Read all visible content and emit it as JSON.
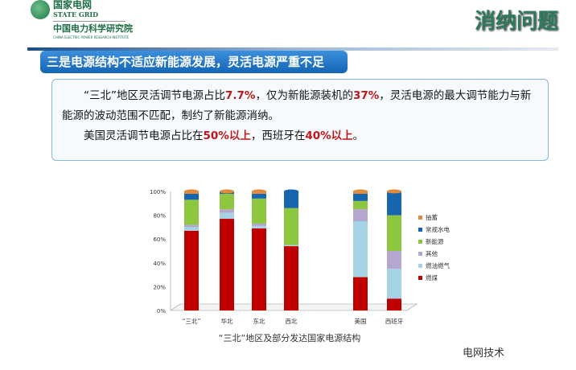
{
  "header": {
    "brand_cn": "国家电网",
    "brand_en": "STATE GRID",
    "institute_cn": "中国电力科学研究院",
    "institute_en": "CHINA ELECTRIC POWER RESEARCH INSTITUTE",
    "slide_title": "消纳问题"
  },
  "banner": "三是电源结构不适应新能源发展，灵活电源严重不足",
  "text": {
    "p1_a": "“三北”地区灵活调节电源占比",
    "p1_b": "7.7%",
    "p1_c": "，仅为新能源装机的",
    "p1_d": "37%",
    "p1_e": "，灵活电源的最大调节能力与新能源的波动范围不匹配，制约了新能源消纳。",
    "p2_a": "美国灵活调节电源占比在",
    "p2_b": "50%以上",
    "p2_c": "，西班牙在",
    "p2_d": "40%以上",
    "p2_e": "。"
  },
  "watermark": "电网技术",
  "chart_data": {
    "type": "bar",
    "stacked": true,
    "percent": true,
    "title": "“三北”地区及部分发达国家电源结构",
    "categories": [
      "“三北”",
      "华北",
      "东北",
      "西北",
      "美国",
      "西班牙"
    ],
    "ylim": [
      0,
      100
    ],
    "yticks": [
      "0%",
      "20%",
      "40%",
      "60%",
      "80%",
      "100%"
    ],
    "legend_position": "right",
    "series": [
      {
        "name": "燃煤",
        "color": "#c00000",
        "values": [
          67,
          77,
          69,
          54,
          28,
          10
        ]
      },
      {
        "name": "燃油燃气",
        "color": "#a6d2e6",
        "values": [
          3,
          5,
          2,
          1,
          47,
          25
        ]
      },
      {
        "name": "其他",
        "color": "#b5a6d0",
        "values": [
          2,
          3,
          2,
          0,
          10,
          15
        ]
      },
      {
        "name": "新能源",
        "color": "#8dc63f",
        "values": [
          21,
          13,
          21,
          31,
          7,
          30
        ]
      },
      {
        "name": "常规水电",
        "color": "#1565b0",
        "values": [
          5,
          1.5,
          4,
          14,
          6,
          19
        ]
      },
      {
        "name": "抽蓄",
        "color": "#e08a3c",
        "values": [
          2,
          0.5,
          2,
          0,
          2,
          1
        ]
      }
    ]
  }
}
